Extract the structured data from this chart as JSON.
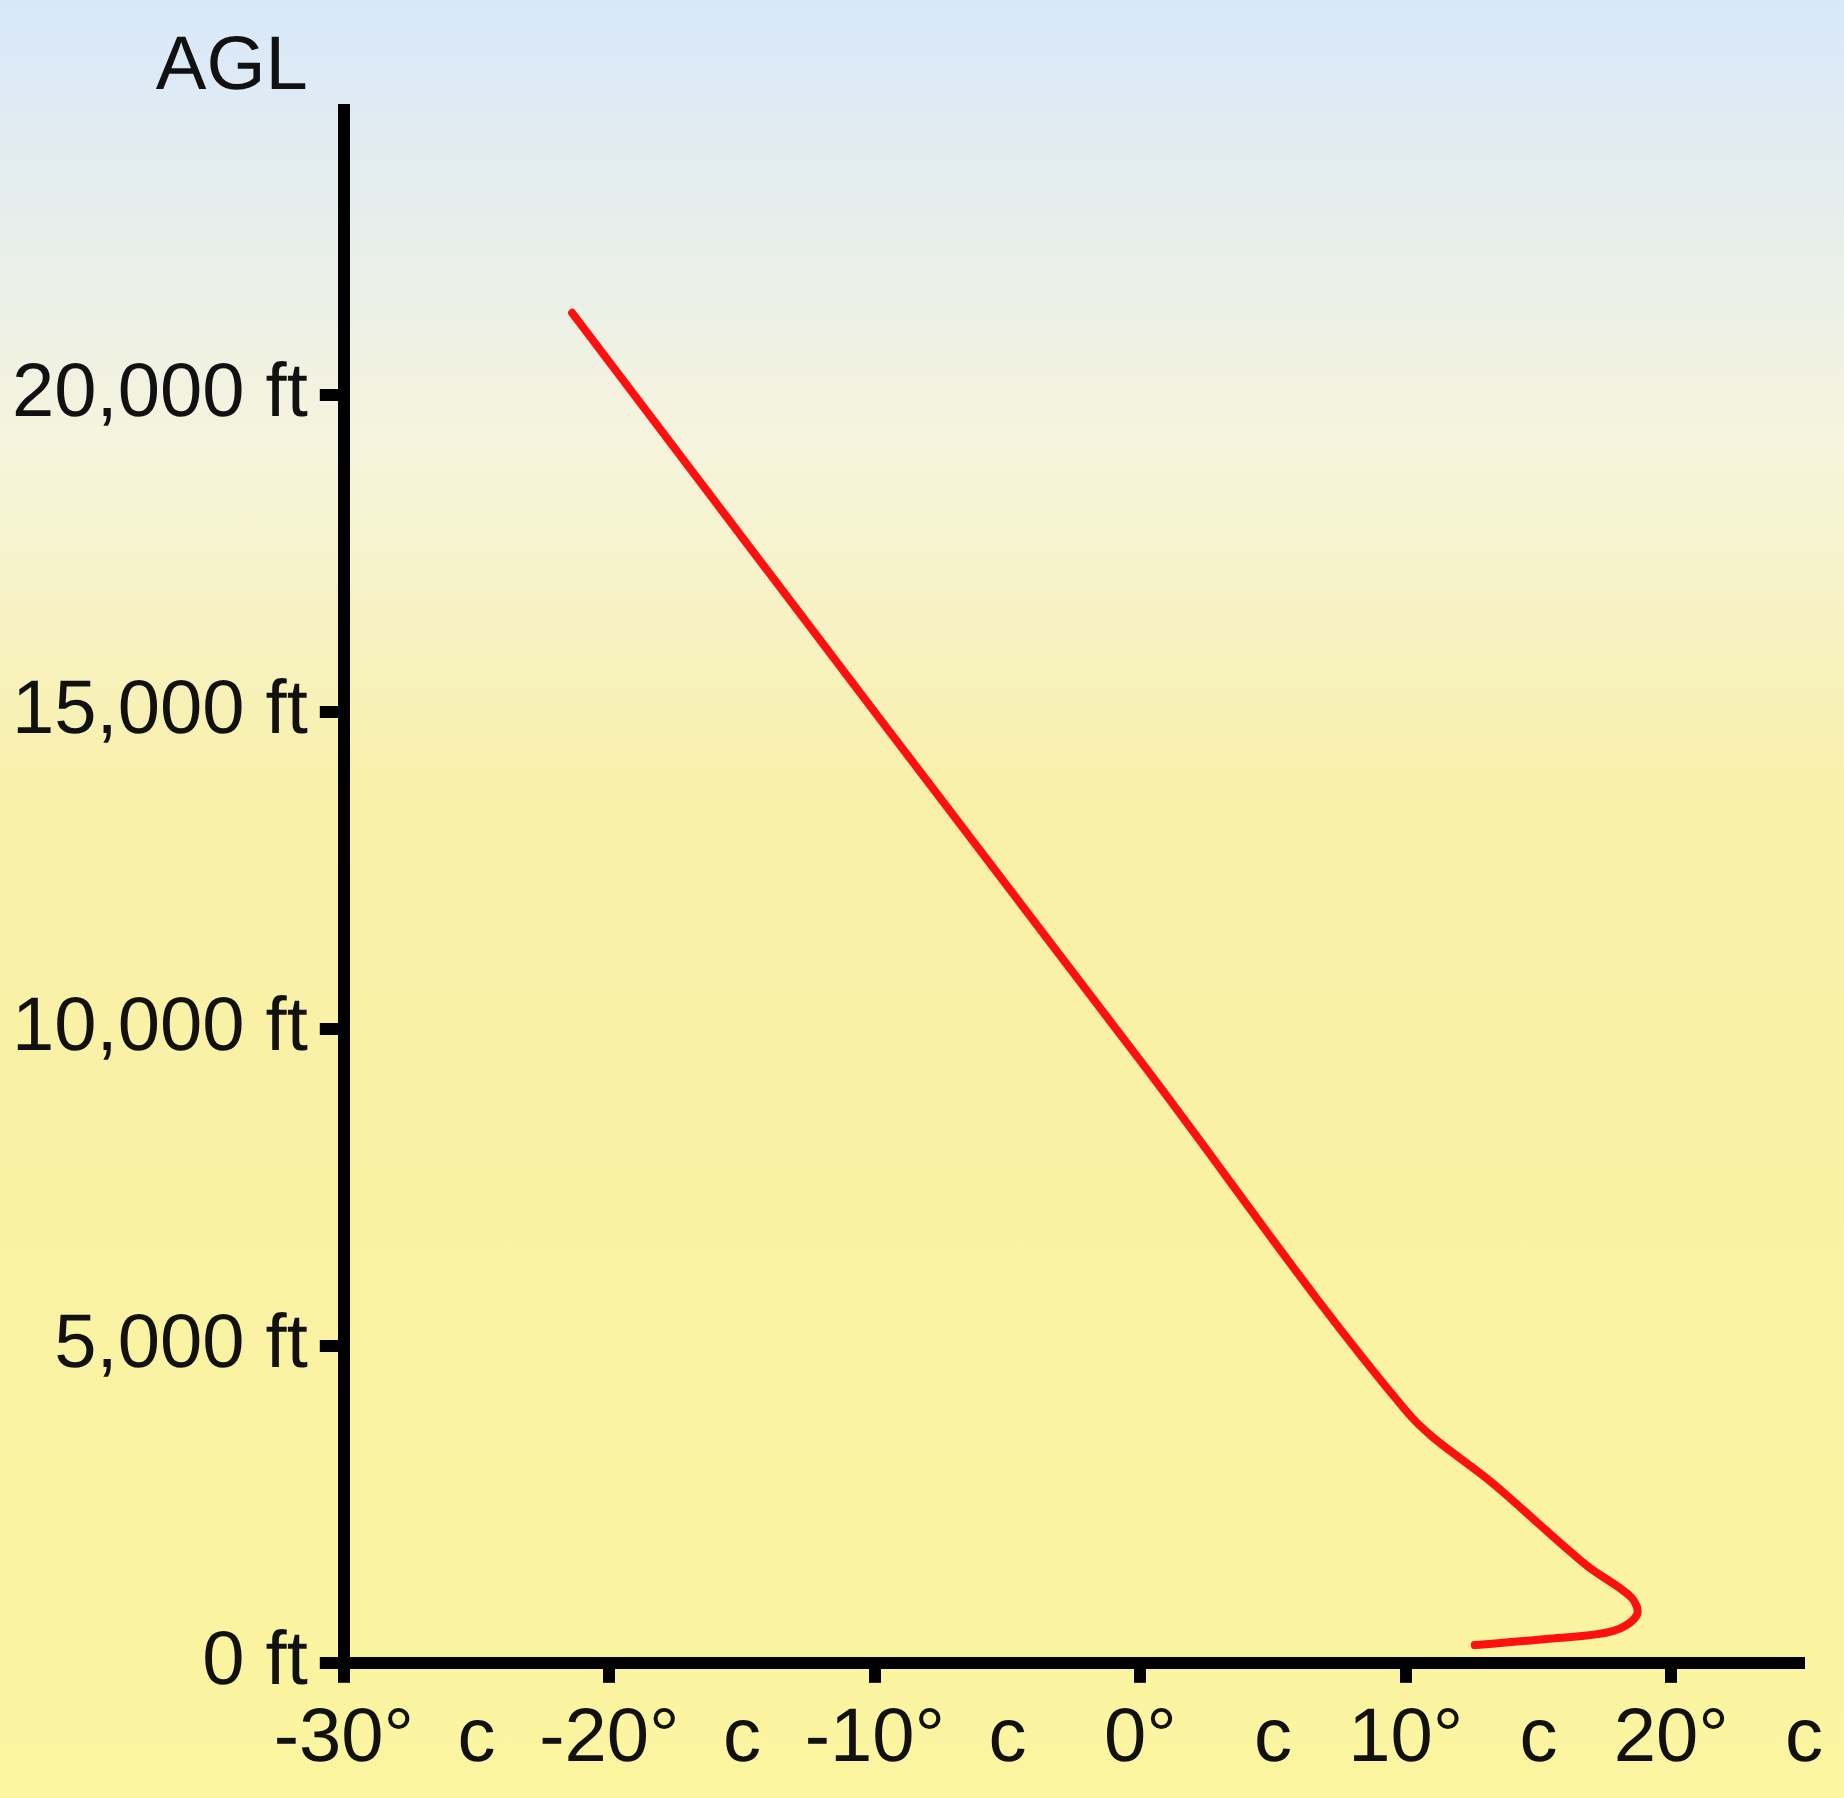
{
  "chart_data": {
    "type": "line",
    "ylabel": "AGL",
    "x": [
      -21.4,
      -10,
      0,
      10,
      13.4,
      16.8,
      18.5,
      18.7,
      17.8,
      15.4,
      12.6
    ],
    "series": [
      {
        "color": "#ff1010",
        "values": [
          21300,
          15000,
          9500,
          3980,
          2790,
          1540,
          1030,
          750,
          500,
          380,
          280
        ]
      }
    ],
    "xlim": [
      -30,
      25
    ],
    "xticks": [
      {
        "value": -30,
        "label": "-30°"
      },
      {
        "value": -25,
        "label": "c"
      },
      {
        "value": -20,
        "label": "-20°"
      },
      {
        "value": -15,
        "label": "c"
      },
      {
        "value": -10,
        "label": "-10°"
      },
      {
        "value": -5,
        "label": "c"
      },
      {
        "value": 0,
        "label": "0°"
      },
      {
        "value": 5,
        "label": "c"
      },
      {
        "value": 10,
        "label": "10°"
      },
      {
        "value": 15,
        "label": "c"
      },
      {
        "value": 20,
        "label": "20°"
      },
      {
        "value": 25,
        "label": "c"
      }
    ],
    "ylim": [
      0,
      24500
    ],
    "yticks": [
      {
        "value": 0,
        "label": "0 ft"
      },
      {
        "value": 5000,
        "label": "5,000 ft"
      },
      {
        "value": 10000,
        "label": "10,000 ft"
      },
      {
        "value": 15000,
        "label": "15,000 ft"
      },
      {
        "value": 20000,
        "label": "20,000 ft"
      }
    ],
    "grid": false,
    "legend": false,
    "marker": "none",
    "line_style": "solid"
  }
}
